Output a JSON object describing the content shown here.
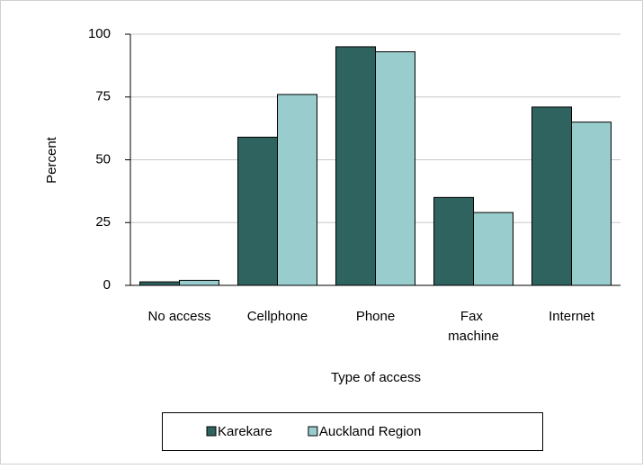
{
  "chart_data": {
    "type": "bar",
    "x_label": "Type of access",
    "y_label": "Percent",
    "categories": [
      "No access",
      "Cellphone",
      "Phone",
      "Fax machine",
      "Internet"
    ],
    "series": [
      {
        "name": "Karekare",
        "color": "#2f6360",
        "values": [
          1.4,
          59,
          95,
          35,
          71
        ]
      },
      {
        "name": "Auckland Region",
        "color": "#99cccc",
        "values": [
          2,
          76,
          93,
          29,
          65
        ]
      }
    ],
    "ylim": [
      0,
      100
    ],
    "yticks": [
      0,
      25,
      50,
      75,
      100
    ],
    "grid": true,
    "legend": "bottom"
  }
}
